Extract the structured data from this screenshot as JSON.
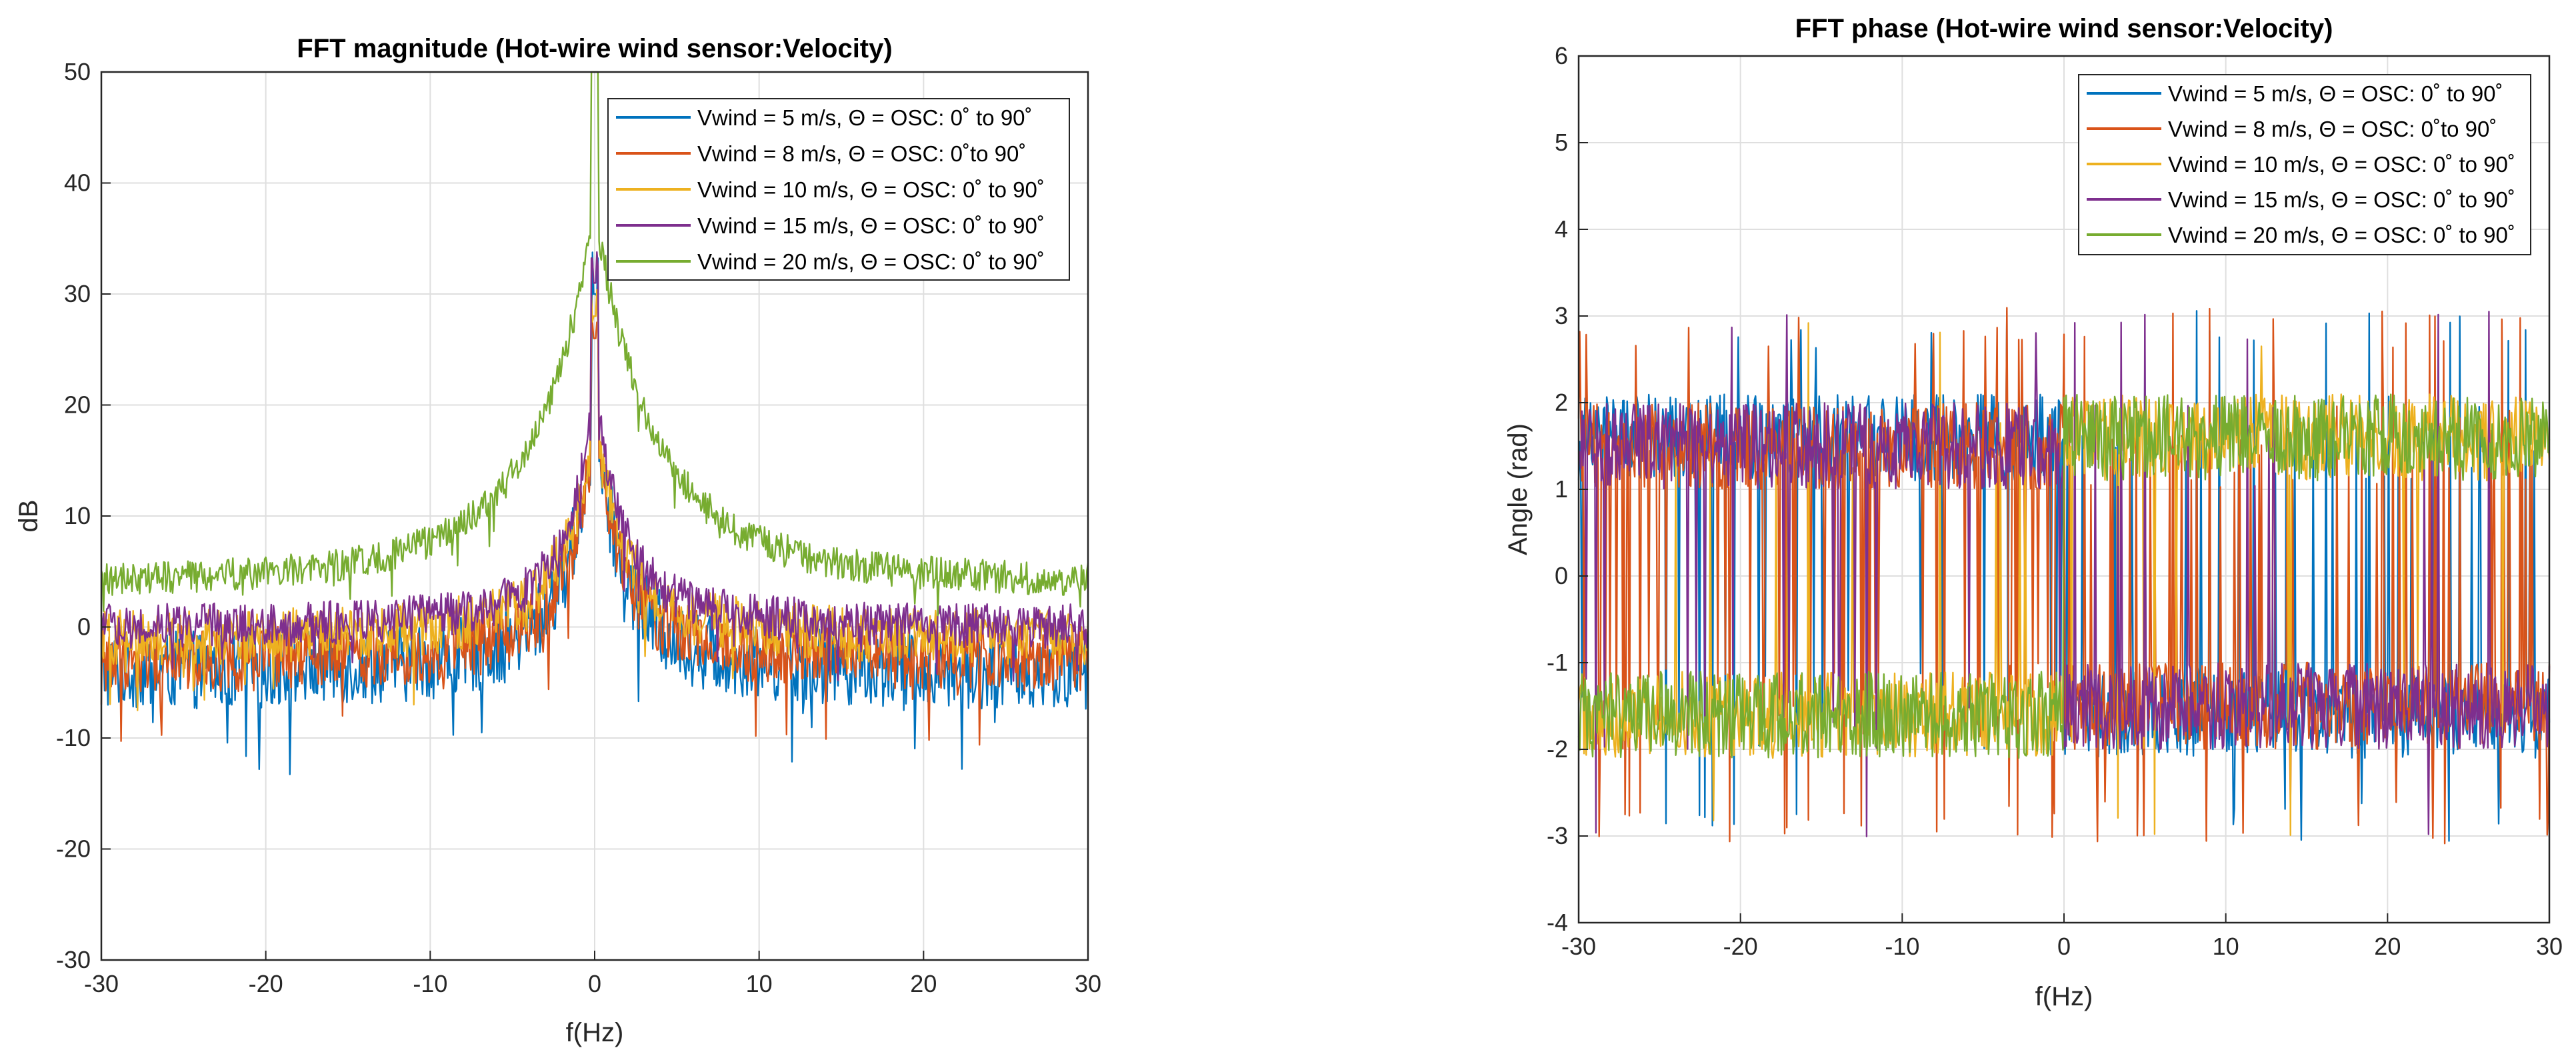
{
  "chart_data": [
    {
      "type": "line",
      "title": "FFT magnitude (Hot-wire wind sensor:Velocity)",
      "xlabel": "f(Hz)",
      "ylabel": "dB",
      "xlim": [
        -30,
        30
      ],
      "ylim": [
        -30,
        50
      ],
      "xticks": [
        -30,
        -20,
        -10,
        0,
        10,
        20,
        30
      ],
      "yticks": [
        -30,
        -20,
        -10,
        0,
        10,
        20,
        30,
        40,
        50
      ],
      "grid": true,
      "legend_position": "top-right",
      "series": [
        {
          "name": "Vwind =  5 m/s, Θ = OSC: 0˚ to 90˚",
          "color": "#0072BD",
          "floor": -4,
          "peak": 30,
          "noise": 7
        },
        {
          "name": "Vwind =  8 m/s, Θ = OSC: 0˚to 90˚",
          "color": "#D95319",
          "floor": -3,
          "peak": 26,
          "noise": 6
        },
        {
          "name": "Vwind = 10 m/s, Θ = OSC: 0˚ to 90˚",
          "color": "#EDB120",
          "floor": -1,
          "peak": 28,
          "noise": 5
        },
        {
          "name": "Vwind = 15 m/s, Θ = OSC: 0˚ to 90˚",
          "color": "#7E2F8E",
          "floor": 0,
          "peak": 31,
          "noise": 4
        },
        {
          "name": "Vwind = 20 m/s, Θ = OSC: 0˚ to 90˚",
          "color": "#77AC30",
          "floor": 4,
          "peak": 50,
          "noise": 3
        }
      ]
    },
    {
      "type": "line",
      "title": "FFT phase (Hot-wire wind sensor:Velocity)",
      "xlabel": "f(Hz)",
      "ylabel": "Angle (rad)",
      "xlim": [
        -30,
        30
      ],
      "ylim": [
        -4,
        6
      ],
      "xticks": [
        -30,
        -20,
        -10,
        0,
        10,
        20,
        30
      ],
      "yticks": [
        -4,
        -3,
        -2,
        -1,
        0,
        1,
        2,
        3,
        4,
        5,
        6
      ],
      "grid": true,
      "legend_position": "top-right",
      "series": [
        {
          "name": "Vwind =  5 m/s, Θ = OSC: 0˚ to 90˚",
          "color": "#0072BD",
          "level": 1.6,
          "switch_rate": 0.05
        },
        {
          "name": "Vwind =  8 m/s, Θ = OSC: 0˚to 90˚",
          "color": "#D95319",
          "level": 1.5,
          "switch_rate": 0.12
        },
        {
          "name": "Vwind = 10 m/s, Θ = OSC: 0˚ to 90˚",
          "color": "#EDB120",
          "level": -1.6,
          "switch_rate": 0.02
        },
        {
          "name": "Vwind = 15 m/s, Θ = OSC: 0˚ to 90˚",
          "color": "#7E2F8E",
          "level": 1.5,
          "switch_rate": 0.03
        },
        {
          "name": "Vwind = 20 m/s, Θ = OSC: 0˚ to 90˚",
          "color": "#77AC30",
          "level": -1.6,
          "switch_rate": 0.0
        }
      ]
    }
  ]
}
